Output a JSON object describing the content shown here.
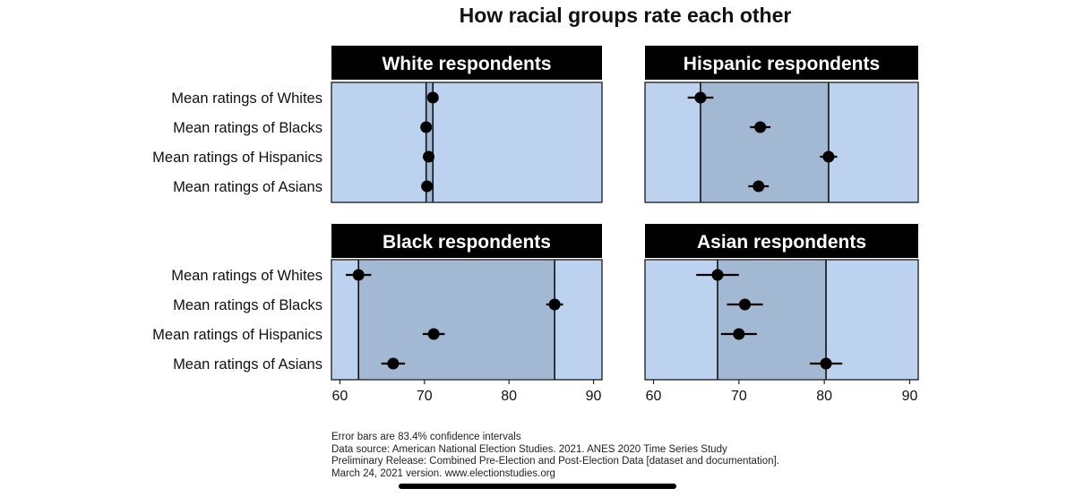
{
  "chart_data": {
    "type": "scatter",
    "title": "How racial groups rate each other",
    "row_labels": [
      "Mean ratings of Whites",
      "Mean ratings of Blacks",
      "Mean ratings of Hispanics",
      "Mean ratings of Asians"
    ],
    "xlim": [
      59,
      91
    ],
    "x_ticks": [
      60,
      70,
      80,
      90
    ],
    "grid": false,
    "colors": {
      "panel_bg": "#bcd2ee",
      "range_band": "#a3b8d3",
      "header_bg": "#000000",
      "header_text": "#ffffff",
      "point": "#000000"
    },
    "panels": [
      {
        "title": "White respondents",
        "points": [
          {
            "value": 71.0,
            "ci": [
              70.7,
              71.3
            ]
          },
          {
            "value": 70.2,
            "ci": [
              69.9,
              70.5
            ]
          },
          {
            "value": 70.5,
            "ci": [
              70.2,
              70.8
            ]
          },
          {
            "value": 70.3,
            "ci": [
              70.0,
              70.6
            ]
          }
        ],
        "range": [
          70.2,
          71.0
        ]
      },
      {
        "title": "Hispanic respondents",
        "points": [
          {
            "value": 65.5,
            "ci": [
              64.0,
              67.0
            ]
          },
          {
            "value": 72.5,
            "ci": [
              71.3,
              73.7
            ]
          },
          {
            "value": 80.5,
            "ci": [
              79.5,
              81.5
            ]
          },
          {
            "value": 72.3,
            "ci": [
              71.1,
              73.5
            ]
          }
        ],
        "range": [
          65.5,
          80.5
        ]
      },
      {
        "title": "Black respondents",
        "points": [
          {
            "value": 62.2,
            "ci": [
              60.7,
              63.7
            ]
          },
          {
            "value": 85.4,
            "ci": [
              84.4,
              86.4
            ]
          },
          {
            "value": 71.1,
            "ci": [
              69.8,
              72.4
            ]
          },
          {
            "value": 66.3,
            "ci": [
              64.9,
              67.7
            ]
          }
        ],
        "range": [
          62.2,
          85.4
        ]
      },
      {
        "title": "Asian respondents",
        "points": [
          {
            "value": 67.5,
            "ci": [
              65.0,
              70.0
            ]
          },
          {
            "value": 70.7,
            "ci": [
              68.6,
              72.8
            ]
          },
          {
            "value": 70.0,
            "ci": [
              67.9,
              72.1
            ]
          },
          {
            "value": 80.2,
            "ci": [
              78.3,
              82.1
            ]
          }
        ],
        "range": [
          67.5,
          80.2
        ]
      }
    ]
  },
  "footnotes": [
    "Error bars are 83.4% confidence intervals",
    "Data source: American National Election Studies. 2021. ANES 2020 Time Series Study",
    "Preliminary Release: Combined Pre-Election and Post-Election Data [dataset and documentation].",
    "March 24, 2021 version. www.electionstudies.org"
  ]
}
